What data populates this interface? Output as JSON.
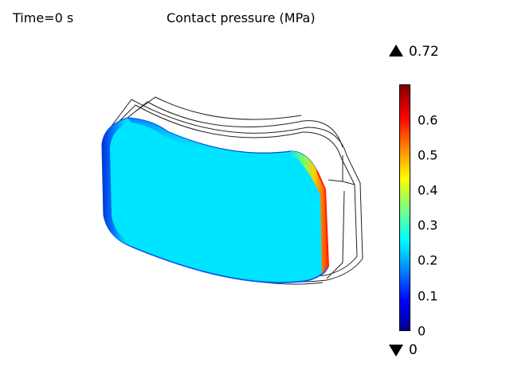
{
  "header": {
    "time_label": "Time=0 s",
    "plot_title": "Contact pressure (MPa)"
  },
  "colorbar": {
    "max_label": "0.72",
    "min_label": "0",
    "ticks": [
      "0.6",
      "0.5",
      "0.4",
      "0.3",
      "0.2",
      "0.1",
      "0"
    ],
    "tick_values": [
      0.6,
      0.5,
      0.4,
      0.3,
      0.2,
      0.1,
      0.0
    ],
    "range": [
      0,
      0.72
    ]
  },
  "colors": {
    "surface": "#00e5ff",
    "edge_low": "#0050ff",
    "edge_high": "#ff2a00"
  }
}
